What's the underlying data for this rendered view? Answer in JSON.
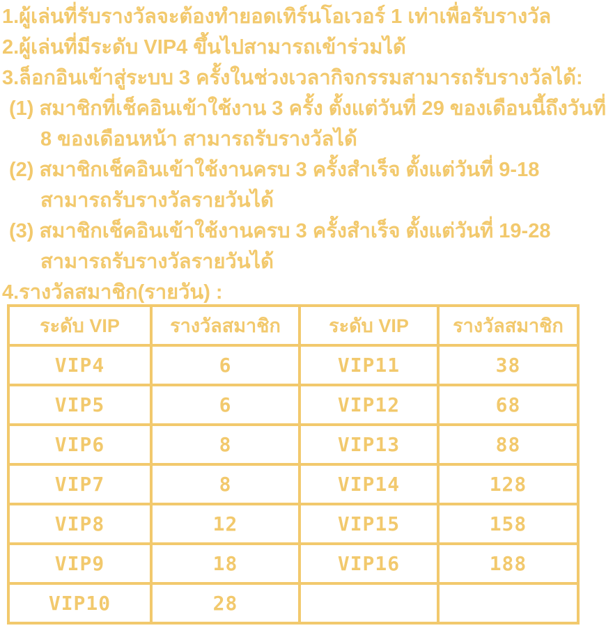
{
  "colors": {
    "text_gold": "#f2c96d",
    "table_border": "#f2c96d",
    "background": "#ffffff"
  },
  "rules": {
    "lines": [
      {
        "text": "1.ผู้เล่นที่รับรางวัลจะต้องทำยอดเทิร์นโอเวอร์ 1 เท่าเพื่อรับรางวัล"
      },
      {
        "text": "2.ผู้เล่นที่มีระดับ VIP4 ขึ้นไปสามารถเข้าร่วมได้"
      },
      {
        "text": "3.ล็อกอินเข้าสู่ระบบ 3 ครั้งในช่วงเวลากิจกรรมสามารถรับรางวัลได้:"
      },
      {
        "text": "(1) สมาชิกที่เช็คอินเข้าใช้งาน 3 ครั้ง ตั้งแต่วันที่ 29 ของเดือนนี้ถึงวันที่"
      },
      {
        "text": "8 ของเดือนหน้า สามารถรับรางวัลได้"
      },
      {
        "text": "(2) สมาชิกเช็คอินเข้าใช้งานครบ 3 ครั้งสำเร็จ ตั้งแต่วันที่ 9-18"
      },
      {
        "text": "สามารถรับรางวัลรายวันได้"
      },
      {
        "text": "(3) สมาชิกเช็คอินเข้าใช้งานครบ 3 ครั้งสำเร็จ ตั้งแต่วันที่ 19-28"
      },
      {
        "text": "สามารถรับรางวัลรายวันได้"
      },
      {
        "text": "4.รางวัลสมาชิก(รายวัน) :"
      }
    ]
  },
  "rewards_table": {
    "headers": [
      "ระดับ VIP",
      "รางวัลสมาชิก",
      "ระดับ VIP",
      "รางวัลสมาชิก"
    ],
    "rows": [
      {
        "cells": [
          "VIP4",
          "6",
          "VIP11",
          "38"
        ]
      },
      {
        "cells": [
          "VIP5",
          "6",
          "VIP12",
          "68"
        ]
      },
      {
        "cells": [
          "VIP6",
          "8",
          "VIP13",
          "88"
        ]
      },
      {
        "cells": [
          "VIP7",
          "8",
          "VIP14",
          "128"
        ]
      },
      {
        "cells": [
          "VIP8",
          "12",
          "VIP15",
          "158"
        ]
      },
      {
        "cells": [
          "VIP9",
          "18",
          "VIP16",
          "188"
        ]
      },
      {
        "cells": [
          "VIP10",
          "28",
          "",
          ""
        ]
      }
    ]
  }
}
